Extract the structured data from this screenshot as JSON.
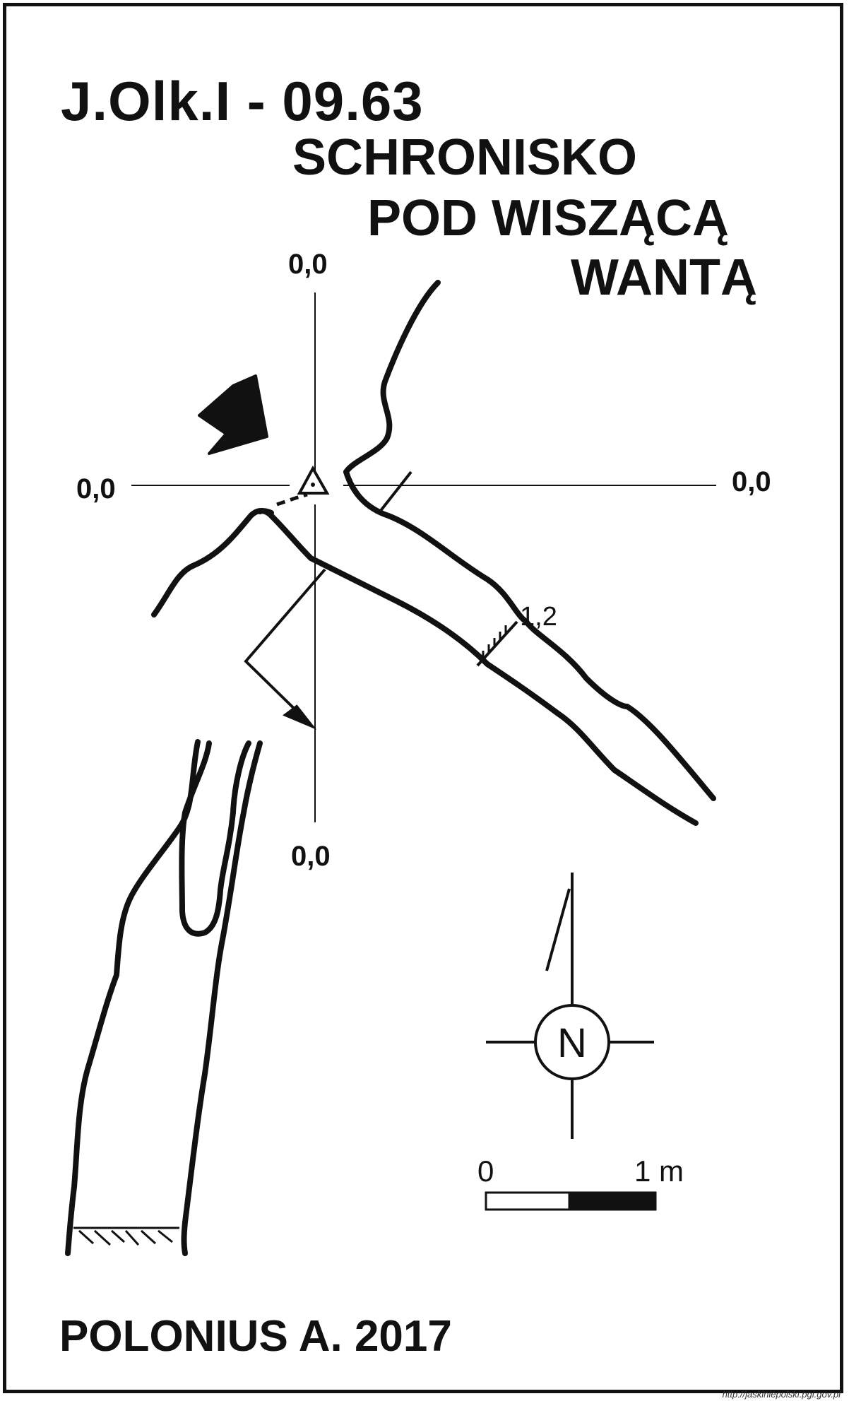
{
  "title": {
    "code": "J.Olk.I - 09.63",
    "name_line1": "SCHRONISKO",
    "name_line2": "POD WISZĄCĄ",
    "name_line3": "WANTĄ"
  },
  "datum_labels": {
    "top": "0,0",
    "left": "0,0",
    "right": "0,0",
    "bottom": "0,0"
  },
  "dimension_label": "1,2",
  "compass": {
    "letter": "N"
  },
  "scale_bar": {
    "start_label": "0",
    "end_label": "1 m"
  },
  "author": "POLONIUS A.  2017",
  "source": "http://jaskiniepolski.pgi.gov.pl"
}
